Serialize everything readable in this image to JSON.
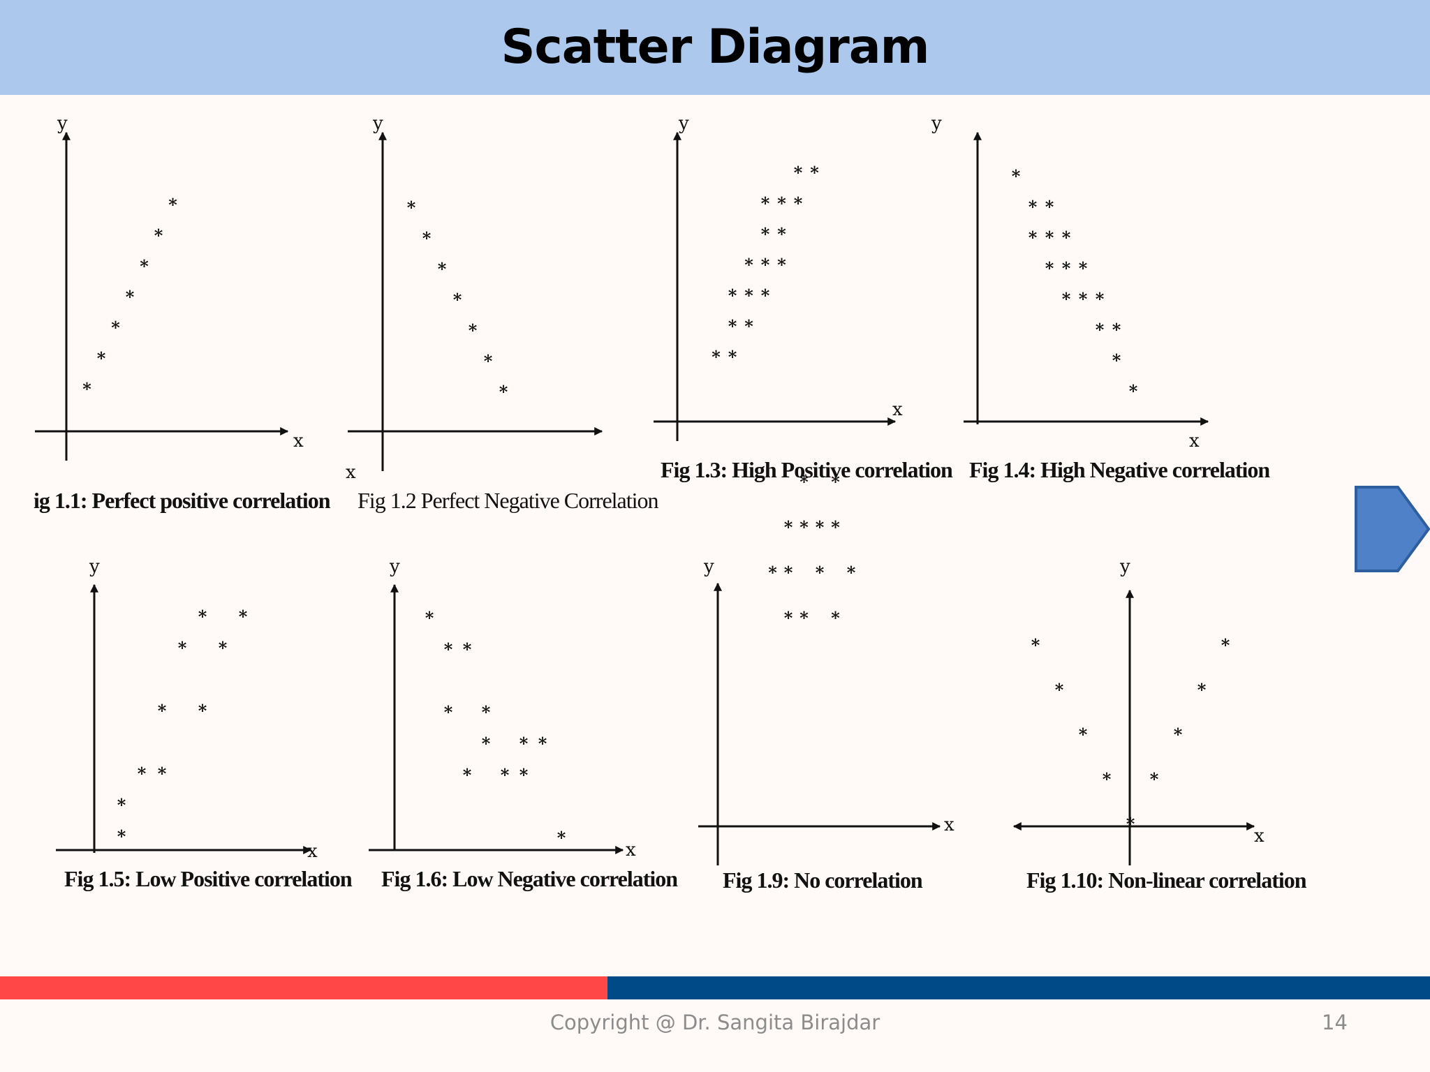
{
  "slide": {
    "title": "Scatter Diagram",
    "copyright": "Copyright @ Dr. Sangita Birajdar",
    "page_number": "14"
  },
  "colors": {
    "header_bg": "#ACC8EC",
    "footer_red": "#FF4747",
    "footer_blue": "#004B87",
    "arrow_fill": "#4F81C8",
    "arrow_stroke": "#2E5E9E"
  },
  "icons": {
    "nav": "right-arrow-pentagon-icon"
  },
  "chart_data": [
    {
      "type": "scatter",
      "title": "ig 1.1: Perfect positive correlation",
      "xlabel": "x",
      "ylabel": "y",
      "points": [
        [
          1,
          1
        ],
        [
          2,
          2
        ],
        [
          3,
          3
        ],
        [
          4,
          4
        ],
        [
          5,
          5
        ],
        [
          6,
          6
        ],
        [
          7,
          7
        ]
      ]
    },
    {
      "type": "scatter",
      "title": "Fig 1.2 Perfect Negative Correlation",
      "xlabel": "x",
      "ylabel": "y",
      "points": [
        [
          1,
          7
        ],
        [
          2,
          6
        ],
        [
          3,
          5
        ],
        [
          4,
          4
        ],
        [
          5,
          3
        ],
        [
          6,
          2
        ],
        [
          7,
          1
        ]
      ]
    },
    {
      "type": "scatter",
      "title": "Fig 1.3: High Positive correlation",
      "xlabel": "x",
      "ylabel": "y",
      "points": [
        [
          1,
          1
        ],
        [
          2,
          1
        ],
        [
          2,
          2
        ],
        [
          3,
          2
        ],
        [
          2,
          3
        ],
        [
          3,
          3
        ],
        [
          4,
          3
        ],
        [
          3,
          4
        ],
        [
          4,
          4
        ],
        [
          5,
          4
        ],
        [
          4,
          5
        ],
        [
          5,
          5
        ],
        [
          4,
          6
        ],
        [
          5,
          6
        ],
        [
          6,
          6
        ],
        [
          6,
          7
        ],
        [
          7,
          7
        ]
      ]
    },
    {
      "type": "scatter",
      "title": "Fig 1.4: High Negative correlation",
      "xlabel": "x",
      "ylabel": "y",
      "points": [
        [
          1,
          8
        ],
        [
          2,
          7
        ],
        [
          3,
          7
        ],
        [
          2,
          6
        ],
        [
          3,
          6
        ],
        [
          4,
          6
        ],
        [
          3,
          5
        ],
        [
          4,
          5
        ],
        [
          5,
          5
        ],
        [
          4,
          4
        ],
        [
          5,
          4
        ],
        [
          6,
          4
        ],
        [
          6,
          3
        ],
        [
          7,
          3
        ],
        [
          7,
          2
        ],
        [
          8,
          1
        ]
      ]
    },
    {
      "type": "scatter",
      "title": "Fig 1.5:  Low Positive correlation",
      "xlabel": "x",
      "ylabel": "y",
      "points": [
        [
          1,
          1
        ],
        [
          1,
          2
        ],
        [
          2,
          3
        ],
        [
          3,
          3
        ],
        [
          3,
          5
        ],
        [
          5,
          5
        ],
        [
          4,
          7
        ],
        [
          6,
          7
        ],
        [
          5,
          8
        ],
        [
          7,
          8
        ]
      ]
    },
    {
      "type": "scatter",
      "title": "Fig 1.6: Low Negative correlation",
      "xlabel": "x",
      "ylabel": "y",
      "points": [
        [
          1,
          8
        ],
        [
          2,
          7
        ],
        [
          3,
          7
        ],
        [
          2,
          5
        ],
        [
          4,
          5
        ],
        [
          4,
          4
        ],
        [
          6,
          4
        ],
        [
          7,
          4
        ],
        [
          3,
          3
        ],
        [
          5,
          3
        ],
        [
          6,
          3
        ],
        [
          8,
          1
        ]
      ]
    },
    {
      "type": "scatter",
      "title": "Fig 1.9: No correlation",
      "xlabel": "x",
      "ylabel": "y",
      "points": [
        [
          3,
          7
        ],
        [
          5,
          7
        ],
        [
          2,
          6
        ],
        [
          3,
          6
        ],
        [
          4,
          6
        ],
        [
          5,
          6
        ],
        [
          1,
          5
        ],
        [
          2,
          5
        ],
        [
          4,
          5
        ],
        [
          6,
          5
        ],
        [
          2,
          4
        ],
        [
          3,
          4
        ],
        [
          5,
          4
        ]
      ]
    },
    {
      "type": "scatter",
      "title": "Fig 1.10: Non-linear correlation",
      "xlabel": "x",
      "ylabel": "y",
      "points": [
        [
          -4,
          4
        ],
        [
          -3,
          3
        ],
        [
          -2,
          2
        ],
        [
          -1,
          1
        ],
        [
          1,
          1
        ],
        [
          2,
          2
        ],
        [
          3,
          3
        ],
        [
          4,
          4
        ],
        [
          0,
          0
        ]
      ]
    }
  ]
}
